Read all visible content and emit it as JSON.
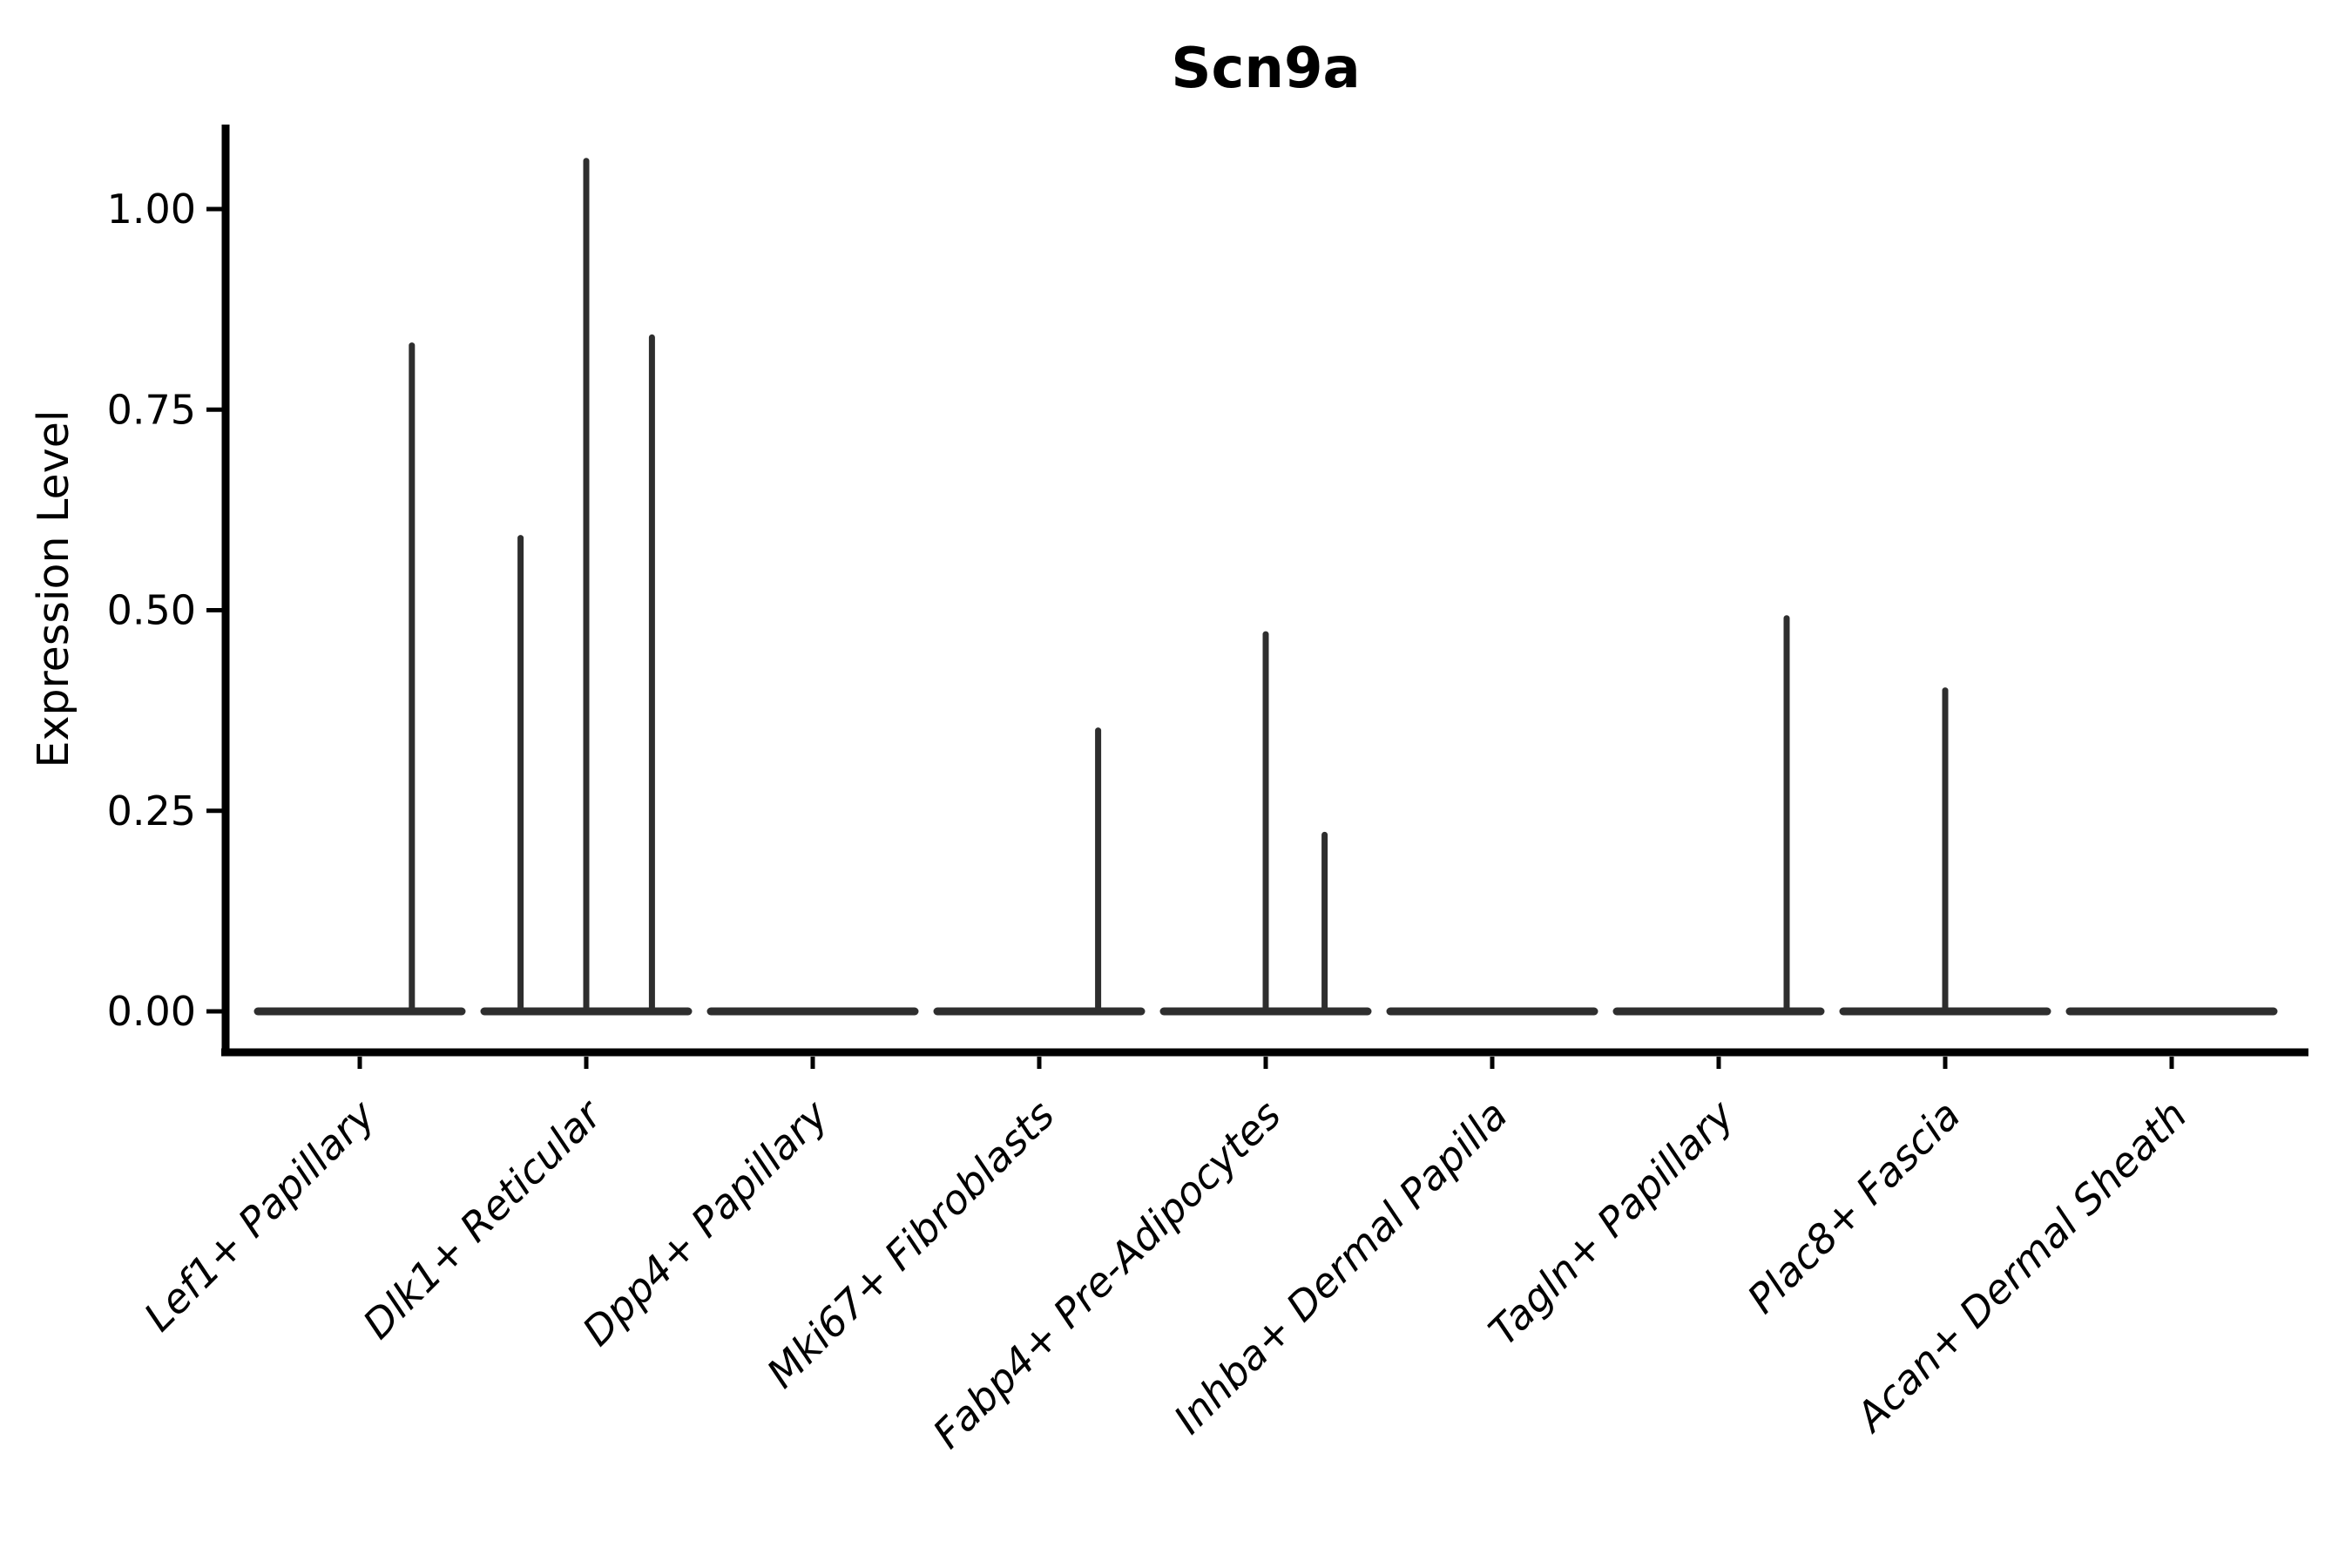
{
  "chart_data": {
    "type": "violin",
    "title": "Scn9a",
    "xlabel": "",
    "ylabel": "Expression Level",
    "ylim": [
      -0.05,
      1.1
    ],
    "grid": false,
    "legend": null,
    "yticks": [
      {
        "value": 1.0,
        "label": "1.00"
      },
      {
        "value": 0.75,
        "label": "0.75"
      },
      {
        "value": 0.5,
        "label": "0.50"
      },
      {
        "value": 0.25,
        "label": "0.25"
      },
      {
        "value": 0.0,
        "label": "0.00"
      }
    ],
    "categories": [
      "Lef1+ Papillary",
      "Dlk1+ Reticular",
      "Dpp4+ Papillary",
      "Mki67+ Fibroblasts",
      "Fabp4+ Pre-Adipocytes",
      "Inhba+ Dermal Papilla",
      "Tagln+ Papillary",
      "Plac8+ Fascia",
      "Acan+ Dermal Sheath"
    ],
    "violins": [
      {
        "category": "Lef1+ Papillary",
        "base_value": 0.0,
        "base_halfwidth_frac": 0.45,
        "spikes": [
          {
            "x_offset_frac": 0.23,
            "value": 0.83
          }
        ]
      },
      {
        "category": "Dlk1+ Reticular",
        "base_value": 0.0,
        "base_halfwidth_frac": 0.45,
        "spikes": [
          {
            "x_offset_frac": -0.29,
            "value": 0.59
          },
          {
            "x_offset_frac": 0.0,
            "value": 1.06
          },
          {
            "x_offset_frac": 0.29,
            "value": 0.84
          }
        ]
      },
      {
        "category": "Dpp4+ Papillary",
        "base_value": 0.0,
        "base_halfwidth_frac": 0.45,
        "spikes": []
      },
      {
        "category": "Mki67+ Fibroblasts",
        "base_value": 0.0,
        "base_halfwidth_frac": 0.45,
        "spikes": [
          {
            "x_offset_frac": 0.26,
            "value": 0.35
          }
        ]
      },
      {
        "category": "Fabp4+ Pre-Adipocytes",
        "base_value": 0.0,
        "base_halfwidth_frac": 0.45,
        "spikes": [
          {
            "x_offset_frac": 0.0,
            "value": 0.47
          },
          {
            "x_offset_frac": 0.26,
            "value": 0.22
          }
        ]
      },
      {
        "category": "Inhba+ Dermal Papilla",
        "base_value": 0.0,
        "base_halfwidth_frac": 0.45,
        "spikes": []
      },
      {
        "category": "Tagln+ Papillary",
        "base_value": 0.0,
        "base_halfwidth_frac": 0.45,
        "spikes": [
          {
            "x_offset_frac": 0.3,
            "value": 0.49
          }
        ]
      },
      {
        "category": "Plac8+ Fascia",
        "base_value": 0.0,
        "base_halfwidth_frac": 0.45,
        "spikes": [
          {
            "x_offset_frac": 0.0,
            "value": 0.4
          }
        ]
      },
      {
        "category": "Acan+ Dermal Sheath",
        "base_value": 0.0,
        "base_halfwidth_frac": 0.45,
        "spikes": []
      }
    ],
    "colors": {
      "violin_line": "#2e2e2e",
      "spine": "#000000",
      "text": "#000000",
      "background": "#ffffff"
    }
  }
}
